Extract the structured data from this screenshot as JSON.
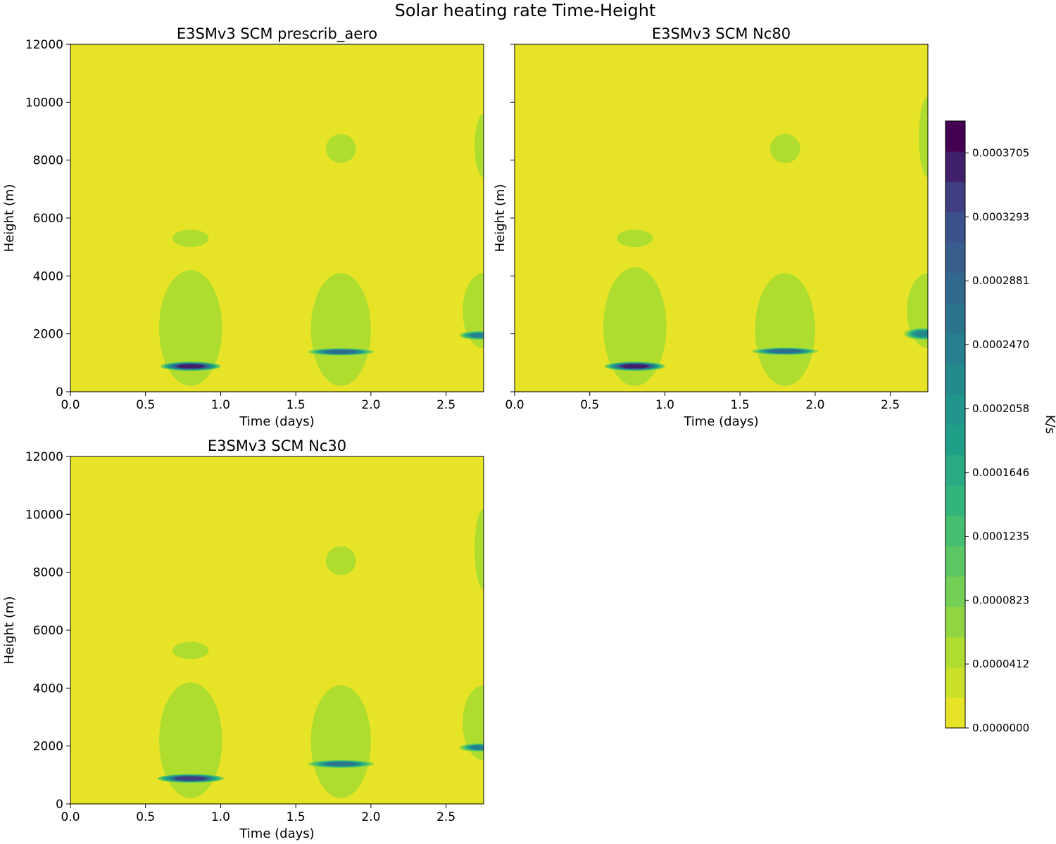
{
  "figure_title": "Solar heating rate Time-Height",
  "chart_data": {
    "type": "heatmap",
    "title": "Solar heating rate Time-Height",
    "xlabel": "Time (days)",
    "ylabel": "Height (m)",
    "xlim": [
      0,
      2.75
    ],
    "ylim": [
      0,
      12000
    ],
    "x_ticks": [
      "0.0",
      "0.5",
      "1.0",
      "1.5",
      "2.0",
      "2.5"
    ],
    "y_ticks": [
      "0",
      "2000",
      "4000",
      "6000",
      "8000",
      "10000",
      "12000"
    ],
    "colorbar": {
      "label": "K/s",
      "colormap": "viridis",
      "range": [
        0,
        0.00039108
      ],
      "levels": 20,
      "tick_labels": [
        "0.0000000",
        "0.0000412",
        "0.0000823",
        "0.0001235",
        "0.0001646",
        "0.0002058",
        "0.0002470",
        "0.0002881",
        "0.0003293",
        "0.0003705"
      ]
    },
    "panels": [
      {
        "title": "E3SMv3 SCM prescrib_aero",
        "features": [
          {
            "kind": "cloud_envelope",
            "t": 0.8,
            "dt": 0.21,
            "z_bottom": 200,
            "z_top": 4200,
            "value": 4e-05
          },
          {
            "kind": "layer",
            "t": 0.8,
            "dt": 0.24,
            "z": 5300,
            "dz": 300,
            "value": 4e-05
          },
          {
            "kind": "core",
            "t": 0.8,
            "dt": 0.2,
            "z": 880,
            "dz": 160,
            "value": 0.00037
          },
          {
            "kind": "cloud_envelope",
            "t": 1.8,
            "dt": 0.2,
            "z_bottom": 200,
            "z_top": 4100,
            "value": 4e-05
          },
          {
            "kind": "layer",
            "t": 1.8,
            "dt": 0.2,
            "z": 8400,
            "dz": 500,
            "value": 4e-05
          },
          {
            "kind": "core",
            "t": 1.8,
            "dt": 0.22,
            "z": 1380,
            "dz": 130,
            "value": 0.00029
          },
          {
            "kind": "cloud_envelope",
            "t": 2.75,
            "dt": 0.14,
            "z_bottom": 1500,
            "z_top": 4100,
            "value": 4e-05
          },
          {
            "kind": "layer",
            "t": 2.75,
            "dt": 0.12,
            "z": 8500,
            "dz": 1100,
            "value": 4e-05
          },
          {
            "kind": "core",
            "t": 2.72,
            "dt": 0.13,
            "z": 1950,
            "dz": 150,
            "value": 0.00025
          }
        ]
      },
      {
        "title": "E3SMv3 SCM Nc80",
        "features": [
          {
            "kind": "cloud_envelope",
            "t": 0.8,
            "dt": 0.21,
            "z_bottom": 200,
            "z_top": 4300,
            "value": 4e-05
          },
          {
            "kind": "layer",
            "t": 0.8,
            "dt": 0.24,
            "z": 5300,
            "dz": 300,
            "value": 4e-05
          },
          {
            "kind": "core",
            "t": 0.8,
            "dt": 0.2,
            "z": 880,
            "dz": 160,
            "value": 0.00037
          },
          {
            "kind": "cloud_envelope",
            "t": 1.8,
            "dt": 0.2,
            "z_bottom": 200,
            "z_top": 4100,
            "value": 4e-05
          },
          {
            "kind": "layer",
            "t": 1.8,
            "dt": 0.2,
            "z": 8400,
            "dz": 500,
            "value": 4e-05
          },
          {
            "kind": "core",
            "t": 1.8,
            "dt": 0.22,
            "z": 1400,
            "dz": 130,
            "value": 0.00029
          },
          {
            "kind": "cloud_envelope",
            "t": 2.75,
            "dt": 0.14,
            "z_bottom": 1500,
            "z_top": 4100,
            "value": 4e-05
          },
          {
            "kind": "layer",
            "t": 2.75,
            "dt": 0.12,
            "z": 8800,
            "dz": 1400,
            "value": 4e-05
          },
          {
            "kind": "core",
            "t": 2.72,
            "dt": 0.13,
            "z": 2000,
            "dz": 220,
            "value": 0.00023
          }
        ]
      },
      {
        "title": "E3SMv3 SCM Nc30",
        "features": [
          {
            "kind": "cloud_envelope",
            "t": 0.8,
            "dt": 0.21,
            "z_bottom": 200,
            "z_top": 4200,
            "value": 4e-05
          },
          {
            "kind": "layer",
            "t": 0.8,
            "dt": 0.24,
            "z": 5300,
            "dz": 300,
            "value": 4e-05
          },
          {
            "kind": "core",
            "t": 0.8,
            "dt": 0.22,
            "z": 880,
            "dz": 150,
            "value": 0.00035
          },
          {
            "kind": "cloud_envelope",
            "t": 1.8,
            "dt": 0.2,
            "z_bottom": 200,
            "z_top": 4100,
            "value": 4e-05
          },
          {
            "kind": "layer",
            "t": 1.8,
            "dt": 0.2,
            "z": 8400,
            "dz": 500,
            "value": 4e-05
          },
          {
            "kind": "core",
            "t": 1.8,
            "dt": 0.22,
            "z": 1380,
            "dz": 140,
            "value": 0.00027
          },
          {
            "kind": "cloud_envelope",
            "t": 2.75,
            "dt": 0.14,
            "z_bottom": 1500,
            "z_top": 4100,
            "value": 4e-05
          },
          {
            "kind": "layer",
            "t": 2.75,
            "dt": 0.12,
            "z": 8800,
            "dz": 1400,
            "value": 4e-05
          },
          {
            "kind": "core",
            "t": 2.72,
            "dt": 0.13,
            "z": 1950,
            "dz": 150,
            "value": 0.00024
          }
        ]
      }
    ]
  }
}
